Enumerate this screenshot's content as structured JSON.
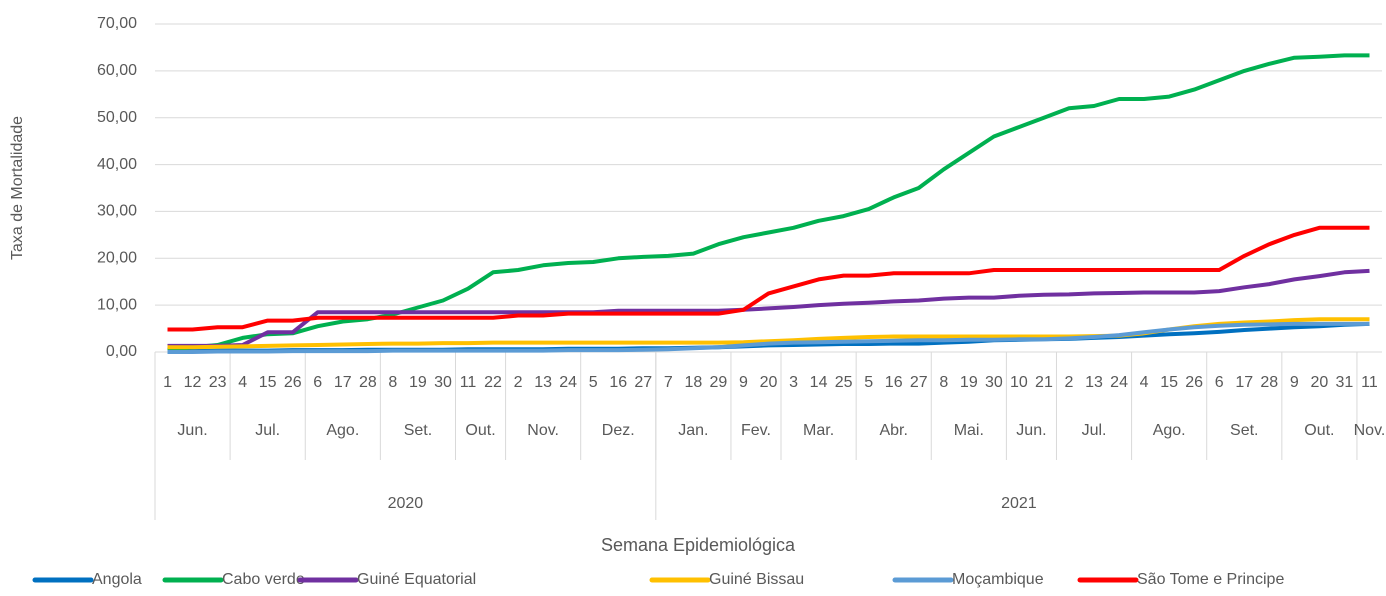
{
  "chart_data": {
    "type": "line",
    "y_axis_label": "Taxa de Mortalidade",
    "x_axis_label": "Semana Epidemiológica",
    "ylim": [
      0,
      70
    ],
    "yticks": [
      {
        "value": 0,
        "label": "0,00"
      },
      {
        "value": 10,
        "label": "10,00"
      },
      {
        "value": 20,
        "label": "20,00"
      },
      {
        "value": 30,
        "label": "30,00"
      },
      {
        "value": 40,
        "label": "40,00"
      },
      {
        "value": 50,
        "label": "50,00"
      },
      {
        "value": 60,
        "label": "60,00"
      },
      {
        "value": 70,
        "label": "70,00"
      }
    ],
    "grid": true,
    "legend": "bottom",
    "years": [
      {
        "label": "2020",
        "months": [
          {
            "label": "Jun.",
            "days": [
              "1",
              "12",
              "23"
            ]
          },
          {
            "label": "Jul.",
            "days": [
              "4",
              "15",
              "26"
            ]
          },
          {
            "label": "Ago.",
            "days": [
              "6",
              "17",
              "28"
            ]
          },
          {
            "label": "Set.",
            "days": [
              "8",
              "19",
              "30"
            ]
          },
          {
            "label": "Out.",
            "days": [
              "11",
              "22"
            ]
          },
          {
            "label": "Nov.",
            "days": [
              "2",
              "13",
              "24"
            ]
          },
          {
            "label": "Dez.",
            "days": [
              "5",
              "16",
              "27"
            ]
          }
        ]
      },
      {
        "label": "2021",
        "months": [
          {
            "label": "Jan.",
            "days": [
              "7",
              "18",
              "29"
            ]
          },
          {
            "label": "Fev.",
            "days": [
              "9",
              "20"
            ]
          },
          {
            "label": "Mar.",
            "days": [
              "3",
              "14",
              "25"
            ]
          },
          {
            "label": "Abr.",
            "days": [
              "5",
              "16",
              "27"
            ]
          },
          {
            "label": "Mai.",
            "days": [
              "8",
              "19",
              "30"
            ]
          },
          {
            "label": "Jun.",
            "days": [
              "10",
              "21"
            ]
          },
          {
            "label": "Jul.",
            "days": [
              "2",
              "13",
              "24"
            ]
          },
          {
            "label": "Ago.",
            "days": [
              "4",
              "15",
              "26"
            ]
          },
          {
            "label": "Set.",
            "days": [
              "6",
              "17",
              "28"
            ]
          },
          {
            "label": "Out.",
            "days": [
              "9",
              "20",
              "31"
            ]
          },
          {
            "label": "Nov.",
            "days": [
              "11"
            ]
          }
        ]
      }
    ],
    "series": [
      {
        "name": "Angola",
        "color": "#0070c0",
        "values": [
          0.2,
          0.2,
          0.3,
          0.3,
          0.3,
          0.4,
          0.4,
          0.4,
          0.5,
          0.5,
          0.5,
          0.5,
          0.6,
          0.6,
          0.6,
          0.6,
          0.7,
          0.7,
          0.7,
          0.8,
          0.8,
          0.9,
          1.0,
          1.2,
          1.4,
          1.5,
          1.6,
          1.7,
          1.7,
          1.8,
          1.8,
          2.0,
          2.2,
          2.5,
          2.6,
          2.7,
          2.8,
          3.0,
          3.2,
          3.5,
          3.8,
          4.0,
          4.3,
          4.7,
          5.0,
          5.3,
          5.5,
          5.8,
          6.0
        ]
      },
      {
        "name": "Cabo verde",
        "color": "#00b050",
        "values": [
          0.5,
          1.0,
          1.5,
          3.0,
          3.8,
          4.0,
          5.5,
          6.5,
          7.0,
          8.0,
          9.5,
          11.0,
          13.5,
          17.0,
          17.5,
          18.5,
          19.0,
          19.2,
          20.0,
          20.3,
          20.5,
          21.0,
          23.0,
          24.5,
          25.5,
          26.5,
          28.0,
          29.0,
          30.5,
          33.0,
          35.0,
          39.0,
          42.5,
          46.0,
          48.0,
          50.0,
          52.0,
          52.5,
          54.0,
          54.0,
          54.5,
          56.0,
          58.0,
          60.0,
          61.5,
          62.8,
          63.0,
          63.3,
          63.3
        ]
      },
      {
        "name": "Guiné Equatorial",
        "color": "#7030a0",
        "values": [
          1.3,
          1.3,
          1.3,
          1.5,
          4.2,
          4.2,
          8.5,
          8.5,
          8.5,
          8.5,
          8.5,
          8.5,
          8.5,
          8.5,
          8.5,
          8.5,
          8.5,
          8.5,
          8.8,
          8.8,
          8.8,
          8.8,
          8.8,
          9.0,
          9.3,
          9.6,
          10.0,
          10.3,
          10.5,
          10.8,
          11.0,
          11.4,
          11.6,
          11.6,
          12.0,
          12.2,
          12.3,
          12.5,
          12.6,
          12.7,
          12.7,
          12.7,
          13.0,
          13.8,
          14.5,
          15.5,
          16.2,
          17.0,
          17.3
        ]
      },
      {
        "name": "Guiné Bissau",
        "color": "#ffc000",
        "values": [
          1.0,
          1.0,
          1.1,
          1.2,
          1.3,
          1.4,
          1.5,
          1.6,
          1.7,
          1.8,
          1.8,
          1.9,
          1.9,
          2.0,
          2.0,
          2.0,
          2.0,
          2.0,
          2.0,
          2.0,
          2.0,
          2.0,
          2.0,
          2.1,
          2.3,
          2.5,
          2.8,
          3.0,
          3.2,
          3.3,
          3.3,
          3.3,
          3.3,
          3.3,
          3.3,
          3.3,
          3.3,
          3.4,
          3.5,
          4.0,
          4.8,
          5.5,
          6.0,
          6.3,
          6.5,
          6.8,
          7.0,
          7.0,
          7.0
        ]
      },
      {
        "name": "Moçambique",
        "color": "#5b9bd5",
        "values": [
          0.0,
          0.0,
          0.1,
          0.1,
          0.1,
          0.2,
          0.2,
          0.2,
          0.2,
          0.3,
          0.3,
          0.3,
          0.3,
          0.3,
          0.3,
          0.3,
          0.4,
          0.4,
          0.4,
          0.5,
          0.6,
          0.8,
          1.0,
          1.4,
          1.8,
          2.0,
          2.1,
          2.2,
          2.3,
          2.4,
          2.5,
          2.5,
          2.6,
          2.6,
          2.7,
          2.7,
          2.9,
          3.2,
          3.6,
          4.2,
          4.8,
          5.3,
          5.6,
          5.8,
          5.9,
          6.0,
          6.0,
          6.0,
          6.0
        ]
      },
      {
        "name": "São Tome e Principe",
        "color": "#ff0000",
        "values": [
          4.8,
          4.8,
          5.3,
          5.3,
          6.7,
          6.7,
          7.3,
          7.3,
          7.3,
          7.3,
          7.3,
          7.3,
          7.3,
          7.3,
          7.8,
          7.8,
          8.2,
          8.2,
          8.2,
          8.2,
          8.2,
          8.2,
          8.2,
          9.0,
          12.5,
          14.0,
          15.5,
          16.3,
          16.3,
          16.8,
          16.8,
          16.8,
          16.8,
          17.5,
          17.5,
          17.5,
          17.5,
          17.5,
          17.5,
          17.5,
          17.5,
          17.5,
          17.5,
          20.5,
          23.0,
          25.0,
          26.5,
          26.5,
          26.5
        ]
      }
    ]
  }
}
